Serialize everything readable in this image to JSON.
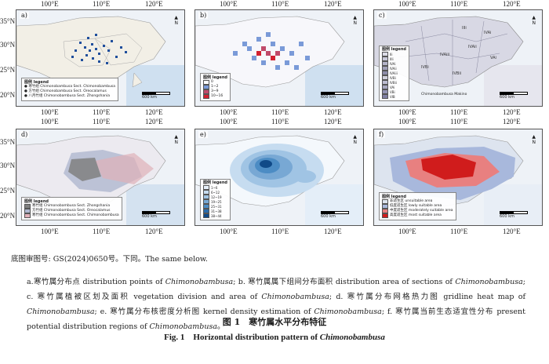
{
  "axes": {
    "top_lon": [
      "100°E",
      "110°E",
      "120°E"
    ],
    "bottom_lon": [
      "100°E",
      "110°E",
      "120°E"
    ],
    "lat": [
      "35°N",
      "30°N",
      "25°N",
      "20°N"
    ]
  },
  "panels": [
    {
      "id": "a",
      "label": "a)",
      "legend_title": "图例 legend",
      "legend_items": [
        "● 寒竹组 Chimonobambusa Sect. Chimonobambusa",
        "● 方竹组 Chimonobambusa Sect. Oreocalamus",
        "● 八月竹组 Chimonobambusa Sect. Zhongshania"
      ],
      "legend_colors": [
        "#1f4e9c",
        "#3a6fc0",
        "#6b8fd6"
      ]
    },
    {
      "id": "b",
      "label": "b)",
      "legend_title": "图例 legend",
      "legend_items": [
        "0",
        "1~2",
        "3~9",
        "10~16"
      ],
      "legend_colors": [
        "#ffffff",
        "#7a9ad8",
        "#c04a6a",
        "#d22030"
      ]
    },
    {
      "id": "c",
      "label": "c)",
      "legend_title": "图例 legend",
      "legend_items": [
        "IIi",
        "IIIi",
        "IVAi",
        "IVAii",
        "IVAiii",
        "IVBi",
        "IVBii",
        "VAi",
        "VBi",
        "VIB"
      ],
      "legend_colors": [
        "#dcdce6",
        "#c8c8d8",
        "#b4b4c8",
        "#a0a0b8",
        "#8c8ca8",
        "#d0d0dc",
        "#bcbcd0",
        "#a8a8c0",
        "#9494b4",
        "#8080a4"
      ],
      "extra_text": "Chimonobambusa Makino"
    },
    {
      "id": "d",
      "label": "d)",
      "legend_title": "图例 legend",
      "legend_items": [
        "寒竹组 Chimonobambusa Sect. Zhongshania",
        "方竹组 Chimonobambusa Sect. Oreocalamus",
        "寒竹组 Chimonobambusa Sect. Chimonobambusa"
      ],
      "legend_colors": [
        "#808080",
        "#b0b8d0",
        "#e0b0b8"
      ]
    },
    {
      "id": "e",
      "label": "e)",
      "legend_title": "图例 legend",
      "legend_items": [
        "1~6",
        "6~12",
        "12~19",
        "19~25",
        "25~31",
        "31~38",
        "38~44"
      ],
      "legend_colors": [
        "#e6f0fa",
        "#c6dcf0",
        "#a0c4e4",
        "#78a8d4",
        "#4c8cc4",
        "#2a6cac",
        "#104a88"
      ]
    },
    {
      "id": "f",
      "label": "f)",
      "legend_title": "图例 legend",
      "legend_items": [
        "非适生区 unsuitable area",
        "低度适生区 lowly suitable area",
        "中度适生区 moderately suitable area",
        "高度适生区 most suitable area"
      ],
      "legend_colors": [
        "#dde4ef",
        "#a8b8dc",
        "#e88080",
        "#d01c1c"
      ]
    }
  ],
  "scale_label": "600 km",
  "north_label": "N",
  "map_note": "底图审图号: GS(2024)0650号。下同。The same below.",
  "caption_parts": [
    "a.寒竹属分布点 distribution points of ",
    "Chimonobambusa",
    "; b. 寒竹属属下组间分布面积 distribution area of sections of ",
    "Chimonobambusa",
    "; c. 寒竹属植被区划及面积 vegetation division and area of ",
    "Chimonobambusa",
    "; d. 寒竹属分布网格热力图 gridline heat map of ",
    "Chimonobambusa",
    "; e. 寒竹属分布核密度分析图 kernel density estimation of ",
    "Chimonobambusa",
    "; f. 寒竹属当前生态适宜性分布 present potential distribution regions of ",
    "Chimonobambusa",
    "。"
  ],
  "figure_title_cn": "图 1　寒竹属水平分布特征",
  "figure_title_en_prefix": "Fig. 1　Horizontal distribution pattern of ",
  "figure_title_en_genus": "Chimonobambusa"
}
